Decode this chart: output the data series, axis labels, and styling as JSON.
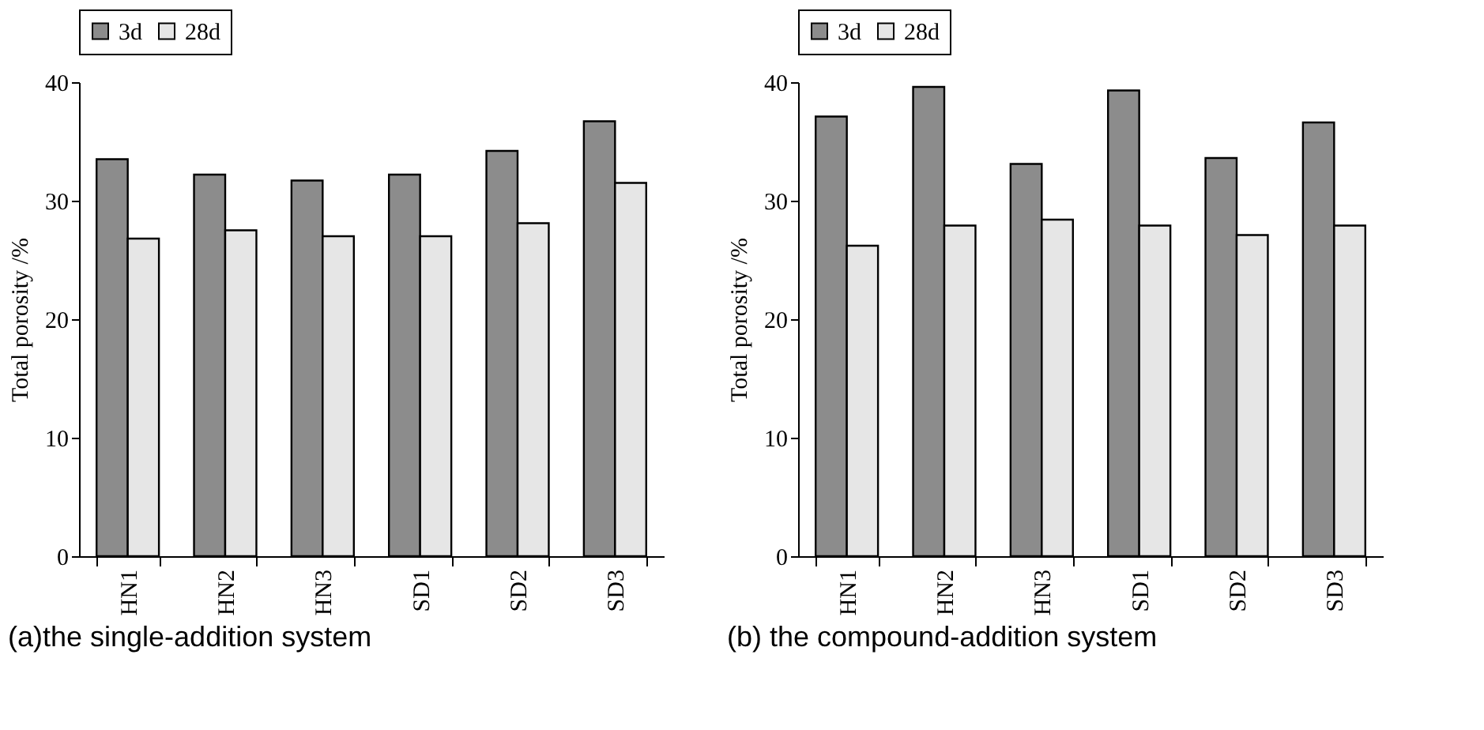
{
  "chart_data": [
    {
      "type": "bar",
      "ylabel": "Total porosity /%",
      "categories": [
        "HN1",
        "HN2",
        "HN3",
        "SD1",
        "SD2",
        "SD3"
      ],
      "series": [
        {
          "name": "3d",
          "color": "#8c8c8c",
          "values": [
            33.5,
            32.2,
            31.7,
            32.2,
            34.2,
            36.7
          ]
        },
        {
          "name": "28d",
          "color": "#e6e6e6",
          "values": [
            26.8,
            27.5,
            27.0,
            27.0,
            28.1,
            31.5
          ]
        }
      ],
      "ylim": [
        0,
        40
      ],
      "yticks": [
        0,
        10,
        20,
        30,
        40
      ],
      "grid": false,
      "legend": "top",
      "annotations": [
        "(a)the single-addition system"
      ]
    },
    {
      "type": "bar",
      "ylabel": "Total porosity /%",
      "categories": [
        "HN1",
        "HN2",
        "HN3",
        "SD1",
        "SD2",
        "SD3"
      ],
      "series": [
        {
          "name": "3d",
          "color": "#8c8c8c",
          "values": [
            37.1,
            39.6,
            33.1,
            39.3,
            33.6,
            36.6
          ]
        },
        {
          "name": "28d",
          "color": "#e6e6e6",
          "values": [
            26.2,
            27.9,
            28.4,
            27.9,
            27.1,
            27.9
          ]
        }
      ],
      "ylim": [
        0,
        40
      ],
      "yticks": [
        0,
        10,
        20,
        30,
        40
      ],
      "grid": false,
      "legend": "top",
      "annotations": [
        "(b) the compound-addition system"
      ]
    }
  ]
}
